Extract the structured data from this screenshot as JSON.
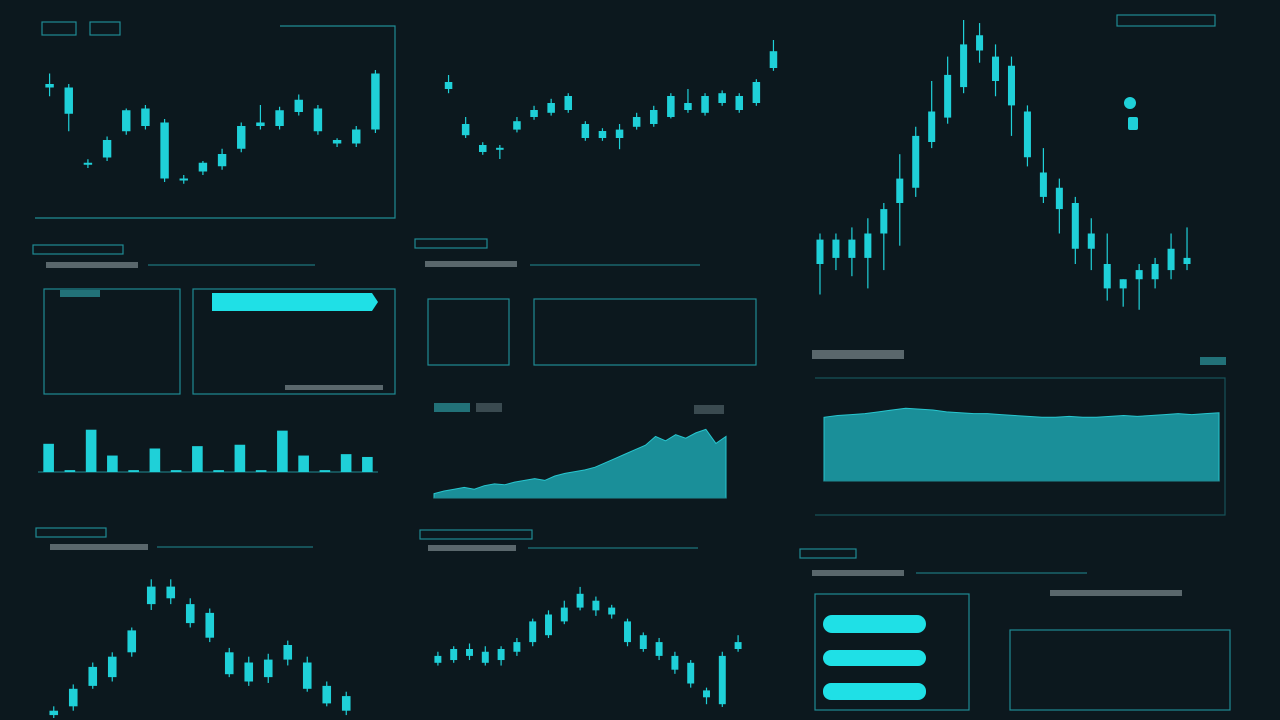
{
  "chart_data": [
    {
      "type": "candlestick",
      "color": "#1fd0d8",
      "ylim": [
        0,
        100
      ],
      "open": [
        70,
        70,
        27,
        30,
        57,
        58,
        50,
        18,
        22,
        25,
        35,
        48,
        57,
        63,
        58,
        40,
        38,
        78
      ],
      "close": [
        72,
        55,
        26,
        40,
        45,
        48,
        18,
        17,
        27,
        32,
        48,
        50,
        48,
        56,
        45,
        38,
        46,
        46
      ],
      "high": [
        78,
        72,
        29,
        42,
        58,
        60,
        52,
        20,
        28,
        35,
        50,
        60,
        59,
        66,
        60,
        41,
        48,
        80
      ],
      "low": [
        65,
        45,
        24,
        28,
        43,
        46,
        16,
        15,
        20,
        23,
        33,
        46,
        46,
        54,
        43,
        36,
        36,
        44
      ]
    },
    {
      "type": "candlestick",
      "color": "#1fd0d8",
      "ylim": [
        0,
        100
      ],
      "open": [
        70,
        40,
        25,
        23,
        42,
        45,
        55,
        60,
        40,
        35,
        30,
        38,
        40,
        45,
        55,
        60,
        62,
        50,
        55,
        80
      ],
      "close": [
        65,
        32,
        20,
        22,
        36,
        50,
        48,
        50,
        30,
        30,
        36,
        45,
        50,
        60,
        50,
        48,
        55,
        60,
        70,
        92
      ],
      "high": [
        75,
        45,
        27,
        25,
        45,
        53,
        58,
        62,
        42,
        37,
        40,
        48,
        53,
        62,
        65,
        62,
        64,
        62,
        72,
        100
      ],
      "low": [
        62,
        30,
        18,
        15,
        34,
        43,
        46,
        48,
        28,
        28,
        22,
        36,
        38,
        44,
        48,
        46,
        53,
        48,
        53,
        78
      ]
    },
    {
      "type": "candlestick",
      "color": "#1fd0d8",
      "ylim": [
        0,
        100
      ],
      "open": [
        20,
        22,
        22,
        22,
        30,
        40,
        45,
        60,
        68,
        78,
        90,
        88,
        85,
        70,
        50,
        45,
        40,
        25,
        20,
        15,
        15,
        15,
        18,
        20
      ],
      "close": [
        28,
        28,
        28,
        30,
        38,
        48,
        62,
        70,
        82,
        92,
        95,
        80,
        72,
        55,
        42,
        38,
        25,
        30,
        12,
        12,
        18,
        20,
        25,
        22
      ],
      "high": [
        30,
        30,
        32,
        35,
        40,
        56,
        65,
        80,
        88,
        100,
        99,
        92,
        88,
        72,
        58,
        48,
        42,
        35,
        30,
        15,
        20,
        22,
        30,
        32
      ],
      "low": [
        10,
        18,
        16,
        12,
        18,
        26,
        42,
        58,
        66,
        76,
        86,
        75,
        62,
        52,
        40,
        30,
        20,
        18,
        8,
        6,
        5,
        12,
        15,
        18
      ]
    },
    {
      "type": "bar",
      "color": "#1fd0d8",
      "ylim": [
        0,
        100
      ],
      "values": [
        60,
        4,
        90,
        35,
        4,
        50,
        4,
        55,
        4,
        58,
        4,
        88,
        35,
        4,
        38,
        32
      ]
    },
    {
      "type": "area",
      "color": "#1a8f99",
      "ylim": [
        0,
        100
      ],
      "values": [
        5,
        8,
        10,
        12,
        10,
        14,
        16,
        15,
        18,
        20,
        22,
        20,
        25,
        28,
        30,
        32,
        35,
        40,
        45,
        50,
        55,
        60,
        70,
        65,
        72,
        68,
        74,
        78,
        62,
        70
      ]
    },
    {
      "type": "area",
      "color": "#1a8f99",
      "ylim": [
        0,
        100
      ],
      "values": [
        70,
        72,
        73,
        74,
        76,
        78,
        80,
        79,
        78,
        76,
        75,
        74,
        74,
        73,
        72,
        71,
        70,
        70,
        71,
        70,
        70,
        71,
        72,
        71,
        72,
        73,
        74,
        73,
        74,
        75
      ]
    },
    {
      "type": "candlestick",
      "color": "#1fd0d8",
      "ylim": [
        0,
        100
      ],
      "open": [
        5,
        20,
        35,
        42,
        60,
        78,
        82,
        65,
        55,
        30,
        25,
        28,
        40,
        20,
        10,
        15
      ],
      "close": [
        2,
        8,
        22,
        28,
        45,
        90,
        90,
        78,
        72,
        45,
        38,
        40,
        50,
        38,
        22,
        5
      ],
      "high": [
        8,
        23,
        38,
        45,
        62,
        95,
        95,
        82,
        75,
        48,
        42,
        44,
        53,
        42,
        25,
        18
      ],
      "low": [
        0,
        5,
        20,
        25,
        42,
        74,
        78,
        62,
        52,
        28,
        22,
        24,
        36,
        18,
        8,
        2
      ]
    },
    {
      "type": "candlestick",
      "color": "#1fd0d8",
      "ylim": [
        0,
        100
      ],
      "open": [
        40,
        50,
        45,
        40,
        50,
        48,
        55,
        60,
        70,
        80,
        85,
        75,
        70,
        50,
        55,
        45,
        40,
        20,
        10,
        50
      ],
      "close": [
        45,
        42,
        50,
        48,
        42,
        55,
        70,
        75,
        80,
        90,
        78,
        80,
        55,
        60,
        45,
        35,
        25,
        15,
        45,
        55
      ],
      "high": [
        48,
        52,
        54,
        52,
        52,
        58,
        72,
        78,
        85,
        95,
        88,
        82,
        72,
        62,
        58,
        48,
        42,
        22,
        48,
        60
      ],
      "low": [
        38,
        40,
        42,
        38,
        38,
        45,
        52,
        58,
        68,
        78,
        74,
        72,
        52,
        48,
        42,
        32,
        22,
        10,
        8,
        48
      ]
    }
  ]
}
